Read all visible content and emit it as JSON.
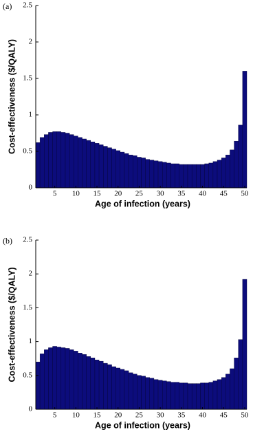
{
  "chart_data": [
    {
      "type": "bar",
      "label": "(a)",
      "xlabel": "Age of infection (years)",
      "ylabel": "Cost-effectiveness ($/QALY)",
      "x": [
        1,
        2,
        3,
        4,
        5,
        6,
        7,
        8,
        9,
        10,
        11,
        12,
        13,
        14,
        15,
        16,
        17,
        18,
        19,
        20,
        21,
        22,
        23,
        24,
        25,
        26,
        27,
        28,
        29,
        30,
        31,
        32,
        33,
        34,
        35,
        36,
        37,
        38,
        39,
        40,
        41,
        42,
        43,
        44,
        45,
        46,
        47,
        48,
        49,
        50
      ],
      "values": [
        0.62,
        0.69,
        0.73,
        0.76,
        0.77,
        0.77,
        0.76,
        0.75,
        0.73,
        0.71,
        0.69,
        0.67,
        0.65,
        0.63,
        0.61,
        0.59,
        0.57,
        0.55,
        0.53,
        0.51,
        0.49,
        0.47,
        0.45,
        0.44,
        0.42,
        0.41,
        0.39,
        0.38,
        0.37,
        0.36,
        0.35,
        0.34,
        0.33,
        0.33,
        0.32,
        0.32,
        0.32,
        0.32,
        0.32,
        0.32,
        0.33,
        0.34,
        0.36,
        0.38,
        0.41,
        0.45,
        0.52,
        0.64,
        0.86,
        1.6
      ],
      "color": "#0c0c7c",
      "xlim": [
        0.5,
        50.5
      ],
      "xticks": [
        5,
        10,
        15,
        20,
        25,
        30,
        35,
        40,
        45,
        50
      ],
      "ylim": [
        0,
        2.5
      ],
      "yticks": [
        0,
        0.5,
        1,
        1.5,
        2,
        2.5
      ]
    },
    {
      "type": "bar",
      "label": "(b)",
      "xlabel": "Age of infection (years)",
      "ylabel": "Cost-effectiveness ($/QALY)",
      "x": [
        1,
        2,
        3,
        4,
        5,
        6,
        7,
        8,
        9,
        10,
        11,
        12,
        13,
        14,
        15,
        16,
        17,
        18,
        19,
        20,
        21,
        22,
        23,
        24,
        25,
        26,
        27,
        28,
        29,
        30,
        31,
        32,
        33,
        34,
        35,
        36,
        37,
        38,
        39,
        40,
        41,
        42,
        43,
        44,
        45,
        46,
        47,
        48,
        49,
        50
      ],
      "values": [
        0.7,
        0.82,
        0.88,
        0.91,
        0.93,
        0.92,
        0.91,
        0.9,
        0.88,
        0.86,
        0.83,
        0.81,
        0.78,
        0.76,
        0.73,
        0.71,
        0.68,
        0.66,
        0.63,
        0.61,
        0.59,
        0.57,
        0.54,
        0.52,
        0.5,
        0.49,
        0.47,
        0.46,
        0.44,
        0.43,
        0.42,
        0.41,
        0.4,
        0.4,
        0.39,
        0.39,
        0.38,
        0.38,
        0.38,
        0.39,
        0.39,
        0.4,
        0.42,
        0.44,
        0.47,
        0.52,
        0.6,
        0.76,
        1.03,
        1.92
      ],
      "color": "#0c0c7c",
      "xlim": [
        0.5,
        50.5
      ],
      "xticks": [
        5,
        10,
        15,
        20,
        25,
        30,
        35,
        40,
        45,
        50
      ],
      "ylim": [
        0,
        2.5
      ],
      "yticks": [
        0,
        0.5,
        1,
        1.5,
        2,
        2.5
      ]
    }
  ]
}
